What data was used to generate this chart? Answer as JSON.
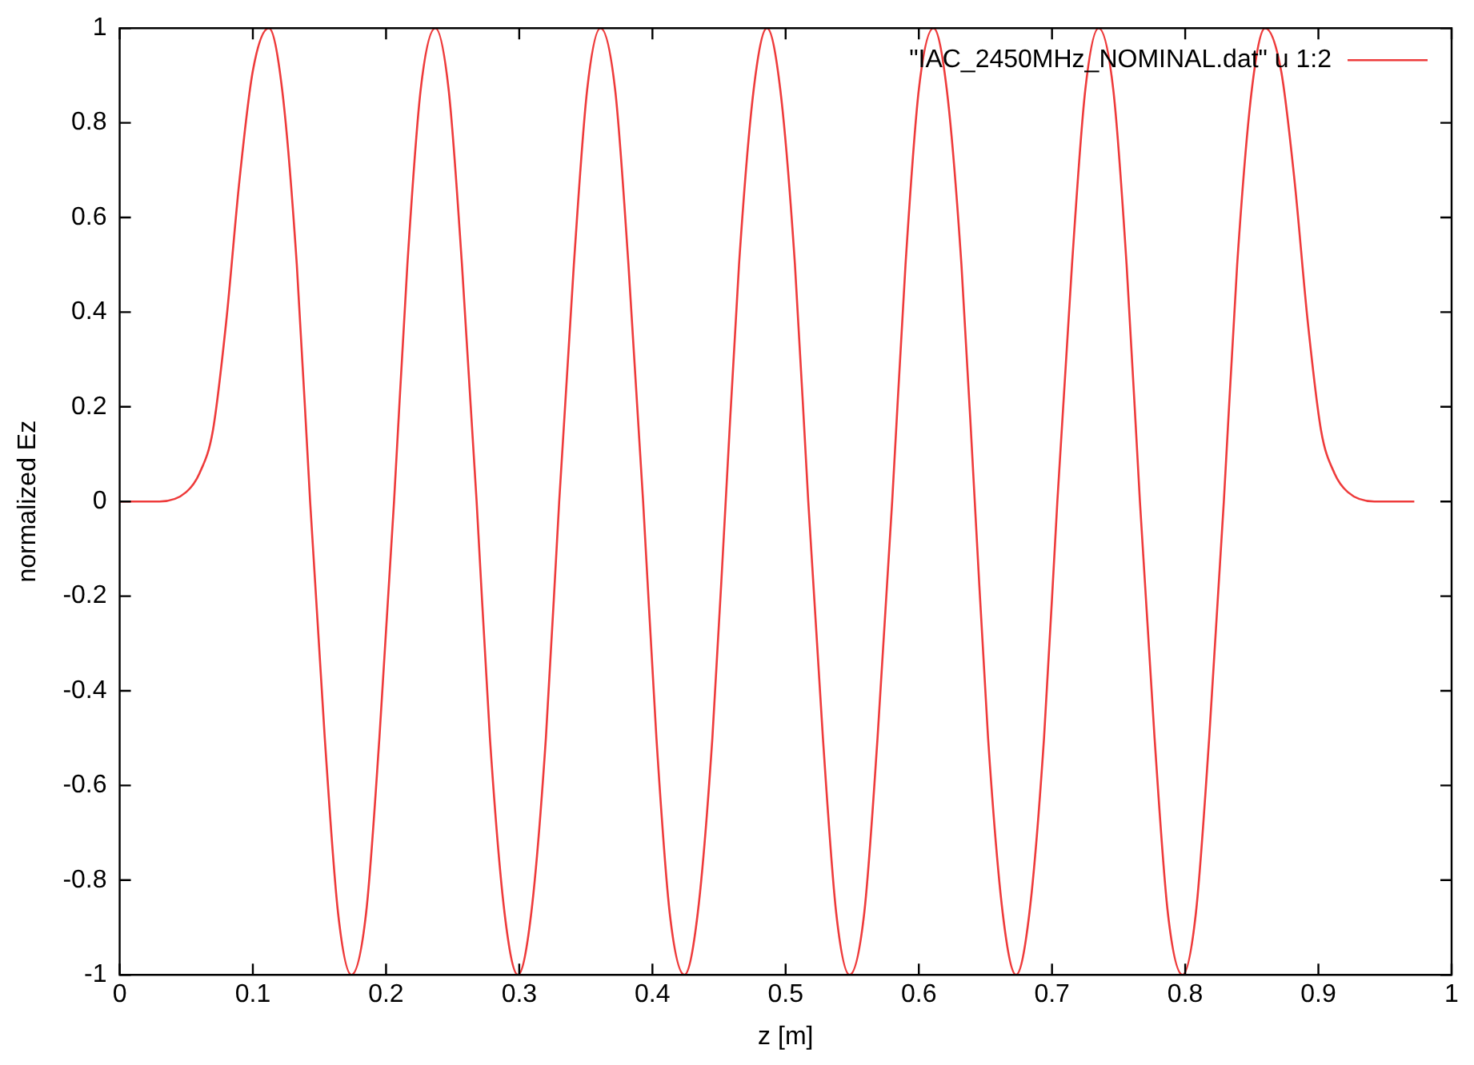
{
  "chart_data": {
    "type": "line",
    "xlabel": "z [m]",
    "ylabel": "normalized Ez",
    "xlim": [
      0,
      1
    ],
    "xticks": [
      0,
      0.1,
      0.2,
      0.3,
      0.4,
      0.5,
      0.6,
      0.7,
      0.8,
      0.9,
      1
    ],
    "ylim": [
      -1,
      1
    ],
    "yticks": [
      -1,
      -0.8,
      -0.6,
      -0.4,
      -0.2,
      0,
      0.2,
      0.4,
      0.6,
      0.8,
      1
    ],
    "grid": false,
    "legend": "top right",
    "marker": "none",
    "line_style": "solid",
    "series": [
      {
        "name": "\"IAC_2450MHz_NOMINAL.dat\" u 1:2",
        "color": "#ee3b3b",
        "x": [
          0,
          0.03,
          0.05,
          0.06,
          0.07,
          0.08,
          0.09,
          0.1,
          0.112,
          0.122,
          0.133,
          0.143,
          0.154,
          0.164,
          0.174,
          0.185,
          0.195,
          0.206,
          0.216,
          0.226,
          0.237,
          0.247,
          0.257,
          0.268,
          0.278,
          0.289,
          0.299,
          0.309,
          0.32,
          0.33,
          0.341,
          0.351,
          0.361,
          0.372,
          0.382,
          0.393,
          0.403,
          0.413,
          0.424,
          0.434,
          0.445,
          0.455,
          0.465,
          0.476,
          0.486,
          0.496,
          0.507,
          0.517,
          0.528,
          0.538,
          0.548,
          0.559,
          0.569,
          0.58,
          0.59,
          0.6,
          0.611,
          0.621,
          0.632,
          0.642,
          0.652,
          0.663,
          0.673,
          0.683,
          0.694,
          0.704,
          0.715,
          0.725,
          0.735,
          0.746,
          0.756,
          0.766,
          0.777,
          0.787,
          0.798,
          0.808,
          0.818,
          0.829,
          0.839,
          0.85,
          0.86,
          0.872,
          0.882,
          0.892,
          0.902,
          0.912,
          0.922,
          0.942,
          0.972
        ],
        "values": [
          0,
          0,
          0.02,
          0.06,
          0.15,
          0.38,
          0.68,
          0.91,
          1,
          0.87,
          0.5,
          0,
          -0.5,
          -0.87,
          -1,
          -0.87,
          -0.5,
          0,
          0.5,
          0.87,
          1,
          0.87,
          0.5,
          0,
          -0.5,
          -0.87,
          -1,
          -0.87,
          -0.5,
          0,
          0.5,
          0.87,
          1,
          0.87,
          0.5,
          0,
          -0.5,
          -0.87,
          -1,
          -0.87,
          -0.5,
          0,
          0.5,
          0.87,
          1,
          0.87,
          0.5,
          0,
          -0.5,
          -0.87,
          -1,
          -0.87,
          -0.5,
          0,
          0.5,
          0.87,
          1,
          0.87,
          0.5,
          0,
          -0.5,
          -0.87,
          -1,
          -0.87,
          -0.5,
          0,
          0.5,
          0.87,
          1,
          0.87,
          0.5,
          0,
          -0.5,
          -0.87,
          -1,
          -0.87,
          -0.5,
          0,
          0.5,
          0.87,
          1,
          0.91,
          0.68,
          0.38,
          0.15,
          0.06,
          0.02,
          0,
          0
        ]
      }
    ]
  }
}
